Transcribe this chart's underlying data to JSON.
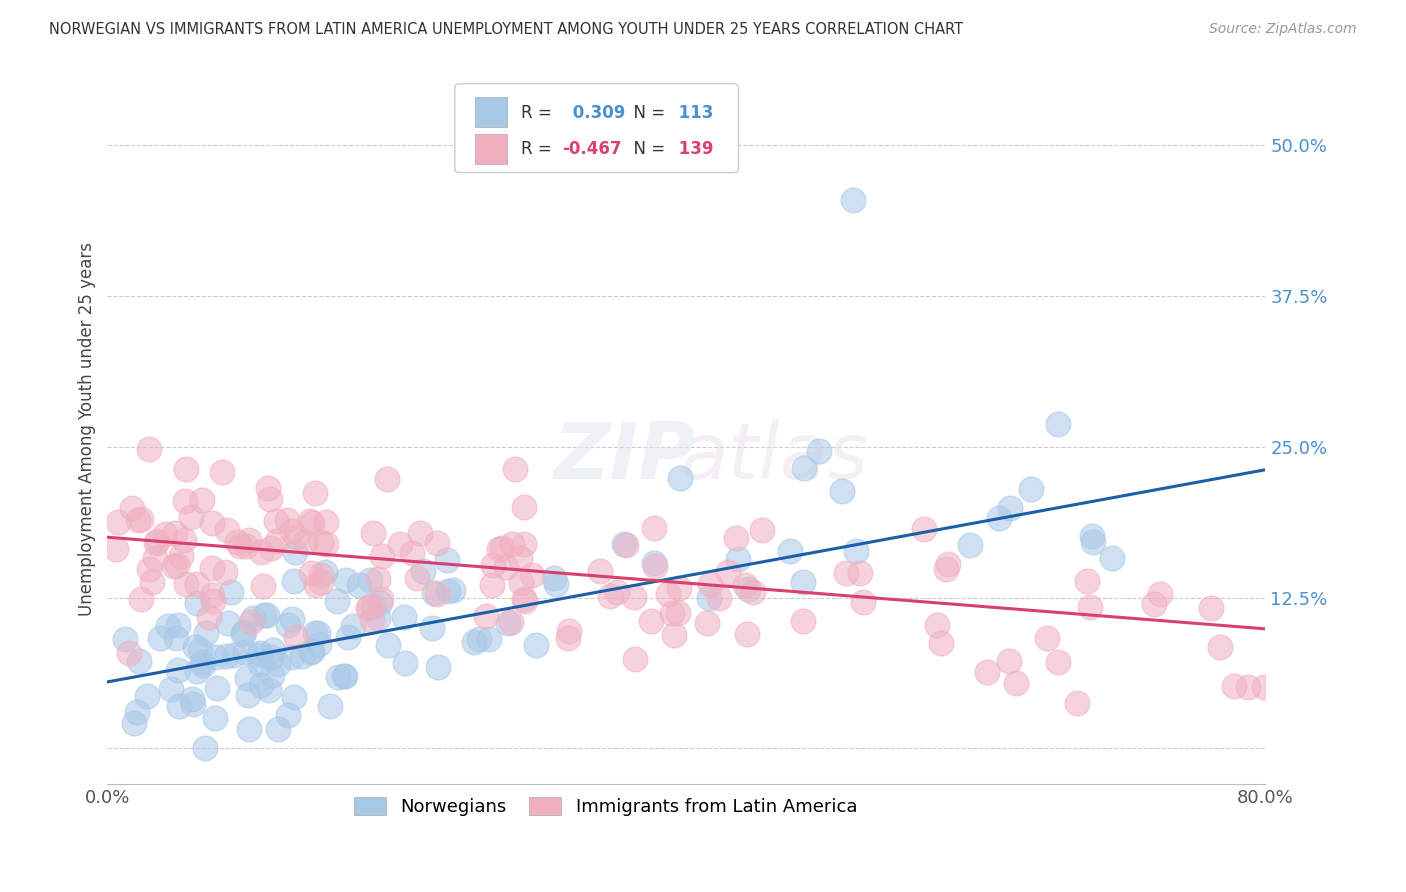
{
  "title": "NORWEGIAN VS IMMIGRANTS FROM LATIN AMERICA UNEMPLOYMENT AMONG YOUTH UNDER 25 YEARS CORRELATION CHART",
  "source": "Source: ZipAtlas.com",
  "ylabel": "Unemployment Among Youth under 25 years",
  "xlim": [
    0.0,
    0.8
  ],
  "ylim": [
    -0.03,
    0.56
  ],
  "yticks": [
    0.0,
    0.125,
    0.25,
    0.375,
    0.5
  ],
  "ytick_labels": [
    "",
    "12.5%",
    "25.0%",
    "37.5%",
    "50.0%"
  ],
  "xticks": [
    0.0,
    0.2,
    0.4,
    0.6,
    0.8
  ],
  "xtick_labels": [
    "0.0%",
    "",
    "",
    "",
    "80.0%"
  ],
  "legend_label1": "Norwegians",
  "legend_label2": "Immigrants from Latin America",
  "R1": "0.309",
  "N1": "113",
  "R2": "-0.467",
  "N2": "139",
  "color_blue": "#a8c8e8",
  "color_pink": "#f0b0c0",
  "line_color_blue": "#1a5fa8",
  "line_color_pink": "#d84070",
  "right_tick_color": "#4a90d0",
  "legend_R_color": "#4a90d0",
  "legend_N_color": "#4a90d0",
  "legend_Rneg_color": "#d84070",
  "legend_Nneg_color": "#d84070",
  "watermark": "ZIPatlas",
  "seed_blue": 42,
  "seed_pink": 99,
  "n_blue": 113,
  "n_pink": 139,
  "blue_slope": 0.22,
  "blue_intercept": 0.055,
  "pink_slope": -0.095,
  "pink_intercept": 0.175
}
